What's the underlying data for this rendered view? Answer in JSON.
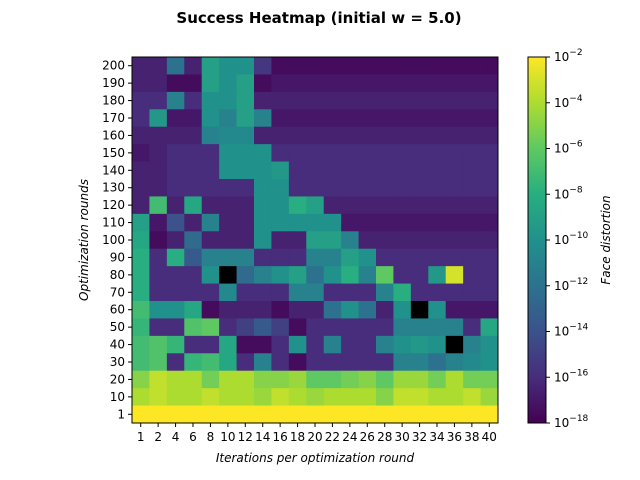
{
  "chart_data": {
    "type": "heatmap",
    "title": "Success Heatmap (initial w = 5.0)",
    "xlabel": "Iterations per optimization round",
    "ylabel": "Optimization rounds",
    "colorbar_label": "Face distortion",
    "colorbar_scale": "log",
    "colorbar_range": [
      1e-18,
      0.01
    ],
    "colorbar_ticks": [
      {
        "base": "10",
        "exp": "−18",
        "value": 1e-18
      },
      {
        "base": "10",
        "exp": "−16",
        "value": 1e-16
      },
      {
        "base": "10",
        "exp": "−14",
        "value": 1e-14
      },
      {
        "base": "10",
        "exp": "−12",
        "value": 1e-12
      },
      {
        "base": "10",
        "exp": "−10",
        "value": 1e-10
      },
      {
        "base": "10",
        "exp": "−8",
        "value": 1e-08
      },
      {
        "base": "10",
        "exp": "−6",
        "value": 1e-06
      },
      {
        "base": "10",
        "exp": "−4",
        "value": 0.0001
      },
      {
        "base": "10",
        "exp": "−2",
        "value": 0.01
      }
    ],
    "colormap": "viridis",
    "missing_color": "#000000",
    "x_categories": [
      "1",
      "2",
      "4",
      "6",
      "8",
      "10",
      "12",
      "14",
      "16",
      "18",
      "20",
      "22",
      "24",
      "26",
      "28",
      "30",
      "32",
      "34",
      "36",
      "38",
      "40"
    ],
    "y_categories": [
      "200",
      "190",
      "180",
      "170",
      "160",
      "150",
      "140",
      "130",
      "120",
      "110",
      "100",
      "90",
      "80",
      "70",
      "60",
      "50",
      "40",
      "30",
      "20",
      "10",
      "1"
    ],
    "log10_values": [
      [
        -16.5,
        -16.5,
        -12.0,
        -16.5,
        -9.0,
        -10.0,
        -10.0,
        -15.5,
        -17.5,
        -17.5,
        -17.5,
        -17.5,
        -17.5,
        -17.5,
        -17.5,
        -17.5,
        -17.5,
        -17.5,
        -17.5,
        -17.5,
        -17.5
      ],
      [
        -16.5,
        -16.5,
        -17.5,
        -17.5,
        -9.0,
        -10.0,
        -9.0,
        -17.5,
        -17.0,
        -17.0,
        -17.0,
        -17.0,
        -17.0,
        -17.0,
        -17.0,
        -17.0,
        -17.0,
        -17.0,
        -17.0,
        -17.0,
        -17.0
      ],
      [
        -16.0,
        -16.0,
        -11.0,
        -16.0,
        -10.0,
        -10.0,
        -9.0,
        -16.5,
        -16.5,
        -16.5,
        -16.5,
        -16.5,
        -16.5,
        -16.5,
        -16.5,
        -16.5,
        -16.5,
        -16.5,
        -16.5,
        -16.5,
        -16.5
      ],
      [
        -16.0,
        -9.5,
        -17.0,
        -17.0,
        -10.0,
        -11.0,
        -9.0,
        -11.0,
        -17.0,
        -17.0,
        -17.0,
        -17.0,
        -17.0,
        -17.0,
        -17.0,
        -17.0,
        -17.0,
        -17.0,
        -17.0,
        -17.0,
        -17.0
      ],
      [
        -16.5,
        -16.5,
        -16.5,
        -16.5,
        -11.0,
        -10.5,
        -10.5,
        -16.5,
        -16.5,
        -16.5,
        -16.5,
        -16.5,
        -16.5,
        -16.5,
        -16.5,
        -16.5,
        -16.5,
        -16.5,
        -16.5,
        -16.5,
        -16.5
      ],
      [
        -17.0,
        -16.5,
        -16.0,
        -16.0,
        -16.0,
        -10.0,
        -10.0,
        -10.0,
        -16.0,
        -16.0,
        -16.0,
        -16.0,
        -16.0,
        -16.0,
        -16.0,
        -16.0,
        -16.0,
        -16.0,
        -16.0,
        -16.0,
        -16.0
      ],
      [
        -16.5,
        -16.5,
        -16.0,
        -16.0,
        -16.0,
        -10.0,
        -10.0,
        -10.0,
        -9.5,
        -16.0,
        -16.0,
        -16.0,
        -16.0,
        -16.0,
        -16.0,
        -16.0,
        -16.0,
        -16.0,
        -16.0,
        -16.0,
        -16.0
      ],
      [
        -16.5,
        -16.5,
        -16.0,
        -16.0,
        -16.0,
        -16.0,
        -16.0,
        -10.0,
        -10.0,
        -16.0,
        -16.0,
        -16.0,
        -16.0,
        -16.0,
        -16.0,
        -16.0,
        -16.0,
        -16.0,
        -16.0,
        -16.0,
        -16.0
      ],
      [
        -16.5,
        -7.0,
        -16.5,
        -8.5,
        -16.5,
        -16.5,
        -16.5,
        -10.0,
        -10.0,
        -8.0,
        -9.0,
        -16.5,
        -16.5,
        -16.5,
        -16.5,
        -16.5,
        -16.5,
        -16.5,
        -16.5,
        -16.5,
        -16.5
      ],
      [
        -9.0,
        -17.0,
        -14.0,
        -16.5,
        -11.0,
        -16.5,
        -16.5,
        -10.0,
        -10.0,
        -10.0,
        -10.0,
        -10.0,
        -17.0,
        -17.0,
        -17.0,
        -17.0,
        -17.0,
        -17.0,
        -17.0,
        -17.0,
        -17.0
      ],
      [
        -8.5,
        -17.5,
        -16.5,
        -12.5,
        -16.5,
        -16.5,
        -16.5,
        -10.0,
        -16.5,
        -16.5,
        -9.0,
        -9.0,
        -11.0,
        -16.5,
        -16.5,
        -16.5,
        -16.5,
        -16.5,
        -16.5,
        -16.5,
        -16.5
      ],
      [
        -8.0,
        -16.0,
        -8.0,
        -13.5,
        -11.0,
        -11.0,
        -11.0,
        -16.0,
        -16.0,
        -16.0,
        -11.0,
        -11.0,
        -9.0,
        -10.0,
        -16.0,
        -16.0,
        -16.0,
        -16.0,
        -16.0,
        -16.0,
        -16.0
      ],
      [
        -8.0,
        -16.0,
        -16.0,
        -16.0,
        -10.0,
        null,
        -12.5,
        -11.0,
        -10.0,
        -9.0,
        -12.0,
        -10.0,
        -8.0,
        -11.0,
        -6.0,
        -16.0,
        -16.0,
        -9.5,
        -3.0,
        -16.0,
        -16.0
      ],
      [
        -8.0,
        -16.0,
        -16.0,
        -16.0,
        -16.0,
        -10.5,
        -16.0,
        -16.0,
        -16.0,
        -11.0,
        -11.0,
        -16.0,
        -16.0,
        -16.0,
        -11.0,
        -8.0,
        -16.0,
        -16.0,
        -16.0,
        -16.0,
        -16.0
      ],
      [
        -7.0,
        -10.0,
        -10.0,
        -8.5,
        -17.5,
        -16.5,
        -16.5,
        -16.5,
        -17.5,
        -16.5,
        -16.5,
        -12.0,
        -10.0,
        -12.0,
        -16.5,
        -10.0,
        null,
        -10.0,
        -17.0,
        -17.0,
        -17.0
      ],
      [
        -7.5,
        -16.0,
        -16.0,
        -6.5,
        -6.0,
        -16.0,
        -15.0,
        -13.5,
        -15.0,
        -17.5,
        -16.0,
        -16.0,
        -16.0,
        -16.0,
        -16.0,
        -11.0,
        -11.0,
        -11.0,
        -11.0,
        -16.0,
        -8.5
      ],
      [
        -7.0,
        -6.5,
        -7.5,
        -16.0,
        -16.0,
        -8.5,
        -17.5,
        -17.5,
        -16.0,
        -10.0,
        -16.0,
        -11.0,
        -16.0,
        -16.0,
        -11.0,
        -10.0,
        -9.5,
        -10.0,
        null,
        -11.0,
        -10.0
      ],
      [
        -7.0,
        -6.5,
        -16.0,
        -7.5,
        -7.0,
        -8.5,
        -16.0,
        -11.0,
        -16.0,
        -17.5,
        -16.0,
        -16.0,
        -16.0,
        -16.0,
        -16.0,
        -11.0,
        -11.0,
        -12.0,
        -11.0,
        -10.5,
        -10.0
      ],
      [
        -5.0,
        -3.5,
        -4.0,
        -4.0,
        -5.5,
        -4.0,
        -4.0,
        -5.0,
        -5.0,
        -4.5,
        -6.0,
        -6.0,
        -5.5,
        -5.0,
        -6.0,
        -4.5,
        -4.5,
        -5.5,
        -4.0,
        -5.5,
        -5.5
      ],
      [
        -4.0,
        -3.5,
        -4.0,
        -4.0,
        -3.5,
        -4.0,
        -4.0,
        -4.5,
        -3.5,
        -4.0,
        -4.5,
        -4.0,
        -4.0,
        -4.0,
        -5.0,
        -3.5,
        -3.5,
        -4.0,
        -4.0,
        -3.5,
        -4.5
      ],
      [
        -2.0,
        -2.0,
        -2.0,
        -2.0,
        -2.0,
        -2.0,
        -2.0,
        -2.0,
        -2.0,
        -2.0,
        -2.0,
        -2.0,
        -2.0,
        -2.0,
        -2.0,
        -2.0,
        -2.0,
        -2.0,
        -2.0,
        -2.0,
        -2.0
      ]
    ]
  }
}
